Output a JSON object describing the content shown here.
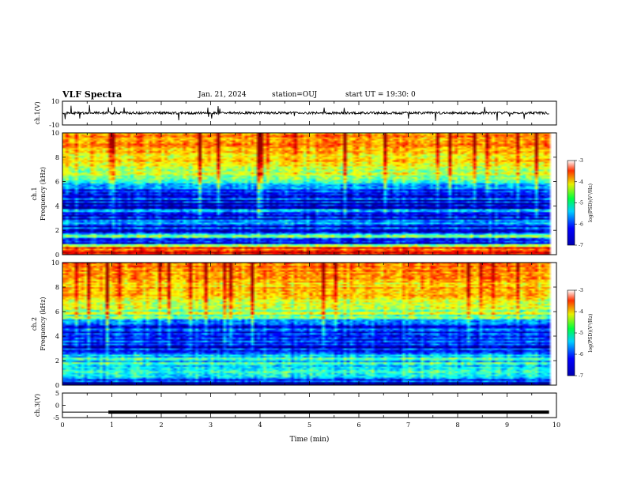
{
  "header": {
    "title": "VLF Spectra",
    "date": "Jan. 21, 2024",
    "station": "station=OUJ",
    "start": "start UT =  19:30: 0"
  },
  "chart_data": [
    {
      "type": "line",
      "name": "ch1-waveform",
      "ylabel": "ch.1(V)",
      "ylim": [
        -10,
        10
      ],
      "yticks": [
        "10",
        "-10"
      ],
      "xlim": [
        0,
        10
      ],
      "waveform": {
        "baseline": 0.1,
        "amplitude": 1.0,
        "spikes": [
          0.05,
          0.18,
          0.35,
          0.55,
          0.93,
          1.05,
          1.25,
          2.35,
          2.95,
          3.02,
          3.15,
          3.18,
          4.7,
          5.3,
          5.7,
          7.0,
          7.55,
          8.55,
          8.8,
          9.05,
          9.35
        ]
      }
    },
    {
      "type": "heatmap",
      "name": "ch1-spectrogram",
      "ylabel": "ch.1\nFrequency (kHz)",
      "ylabel_line1": "ch.1",
      "ylabel_line2": "Frequency (kHz)",
      "xlim": [
        0,
        10
      ],
      "ylim": [
        0,
        10
      ],
      "yticks": [
        "0",
        "2",
        "4",
        "6",
        "8",
        "10"
      ],
      "colorbar": {
        "label": "log(PSD)(V²/Hz)",
        "range": [
          -7,
          -3
        ],
        "ticks": [
          "-3",
          "-4",
          "-5",
          "-6",
          "-7"
        ]
      },
      "profile_log_psd": [
        {
          "f": 0.2,
          "v": -3.2
        },
        {
          "f": 0.5,
          "v": -3.5
        },
        {
          "f": 0.8,
          "v": -5.5
        },
        {
          "f": 1.0,
          "v": -6.6
        },
        {
          "f": 1.5,
          "v": -5.2
        },
        {
          "f": 2.0,
          "v": -6.4
        },
        {
          "f": 2.5,
          "v": -6.0
        },
        {
          "f": 3.0,
          "v": -6.6
        },
        {
          "f": 3.5,
          "v": -6.2
        },
        {
          "f": 4.0,
          "v": -6.7
        },
        {
          "f": 4.5,
          "v": -6.5
        },
        {
          "f": 5.0,
          "v": -6.4
        },
        {
          "f": 5.5,
          "v": -6.0
        },
        {
          "f": 6.0,
          "v": -5.4
        },
        {
          "f": 6.5,
          "v": -4.9
        },
        {
          "f": 7.0,
          "v": -4.6
        },
        {
          "f": 8.0,
          "v": -4.3
        },
        {
          "f": 9.0,
          "v": -4.1
        },
        {
          "f": 10.0,
          "v": -4.0
        }
      ]
    },
    {
      "type": "heatmap",
      "name": "ch2-spectrogram",
      "ylabel": "ch.2\nFrequency (kHz)",
      "ylabel_line1": "ch.2",
      "ylabel_line2": "Frequency (kHz)",
      "xlim": [
        0,
        10
      ],
      "ylim": [
        0,
        10
      ],
      "yticks": [
        "0",
        "2",
        "4",
        "6",
        "8",
        "10"
      ],
      "colorbar": {
        "label": "log(PSD)(V²/Hz)",
        "range": [
          -7,
          -3
        ],
        "ticks": [
          "-3",
          "-4",
          "-5",
          "-6",
          "-7"
        ]
      },
      "profile_log_psd": [
        {
          "f": 0.2,
          "v": -6.8
        },
        {
          "f": 0.5,
          "v": -6.0
        },
        {
          "f": 1.0,
          "v": -4.8
        },
        {
          "f": 1.5,
          "v": -5.8
        },
        {
          "f": 2.0,
          "v": -5.4
        },
        {
          "f": 2.5,
          "v": -6.2
        },
        {
          "f": 3.0,
          "v": -6.5
        },
        {
          "f": 3.5,
          "v": -6.2
        },
        {
          "f": 4.0,
          "v": -6.6
        },
        {
          "f": 4.5,
          "v": -6.3
        },
        {
          "f": 5.0,
          "v": -6.1
        },
        {
          "f": 5.5,
          "v": -5.4
        },
        {
          "f": 6.0,
          "v": -5.0
        },
        {
          "f": 6.5,
          "v": -4.7
        },
        {
          "f": 7.0,
          "v": -4.5
        },
        {
          "f": 8.0,
          "v": -4.3
        },
        {
          "f": 9.0,
          "v": -4.1
        },
        {
          "f": 10.0,
          "v": -4.0
        }
      ]
    },
    {
      "type": "line",
      "name": "ch3-signal",
      "ylabel": "ch.3(V)",
      "ylim": [
        -5,
        5
      ],
      "yticks": [
        "5",
        "0",
        "-5"
      ],
      "xlim": [
        0,
        10
      ],
      "series": [
        {
          "x": [
            0,
            0.93
          ],
          "y": [
            -2.8,
            -2.8
          ],
          "width": "thin"
        },
        {
          "x": [
            0.93,
            9.85
          ],
          "y": [
            -2.8,
            -2.8
          ],
          "width": "thick"
        }
      ]
    }
  ],
  "xaxis": {
    "label": "Time (min)",
    "ticks": [
      "0",
      "1",
      "2",
      "3",
      "4",
      "5",
      "6",
      "7",
      "8",
      "9",
      "10"
    ],
    "range": [
      0,
      10
    ],
    "data_end": 9.85
  },
  "colors": {
    "axis": "#000000",
    "background": "#ffffff"
  }
}
